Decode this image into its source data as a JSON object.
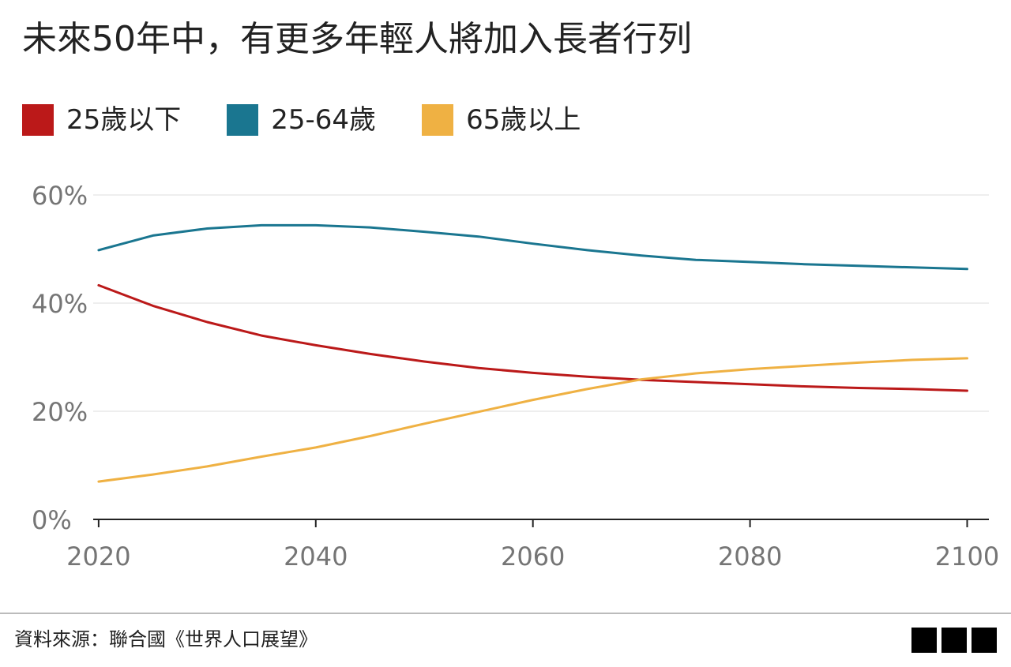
{
  "title": "未來50年中，有更多年輕人將加入長者行列",
  "source": "資料來源：聯合國《世界人口展望》",
  "logo": "BBC",
  "chart_data": {
    "type": "line",
    "x": [
      2020,
      2025,
      2030,
      2035,
      2040,
      2045,
      2050,
      2055,
      2060,
      2065,
      2070,
      2075,
      2080,
      2085,
      2090,
      2095,
      2100
    ],
    "xticks": [
      2020,
      2040,
      2060,
      2080,
      2100
    ],
    "xtick_labels": [
      "2020",
      "2040",
      "2060",
      "2080",
      "2100"
    ],
    "xlim": [
      2019.5,
      2102
    ],
    "ylim": [
      0,
      60
    ],
    "yticks": [
      0,
      20,
      40,
      60
    ],
    "ytick_labels": [
      "0%",
      "20%",
      "40%",
      "60%"
    ],
    "grid": true,
    "legend_position": "top-left",
    "series": [
      {
        "name": "25歲以下",
        "color": "#bb1919",
        "values": [
          43.3,
          39.5,
          36.5,
          34.0,
          32.2,
          30.6,
          29.2,
          28.0,
          27.1,
          26.4,
          25.8,
          25.4,
          25.0,
          24.6,
          24.3,
          24.1,
          23.8
        ]
      },
      {
        "name": "25-64歲",
        "color": "#1a7690",
        "values": [
          49.8,
          52.5,
          53.8,
          54.4,
          54.4,
          54.0,
          53.2,
          52.3,
          51.0,
          49.8,
          48.8,
          48.0,
          47.6,
          47.2,
          46.9,
          46.6,
          46.3
        ]
      },
      {
        "name": "65歲以上",
        "color": "#efb143",
        "values": [
          7.0,
          8.3,
          9.8,
          11.6,
          13.3,
          15.4,
          17.7,
          19.9,
          22.1,
          24.1,
          25.9,
          27.0,
          27.8,
          28.4,
          29.0,
          29.5,
          29.8
        ]
      }
    ]
  }
}
